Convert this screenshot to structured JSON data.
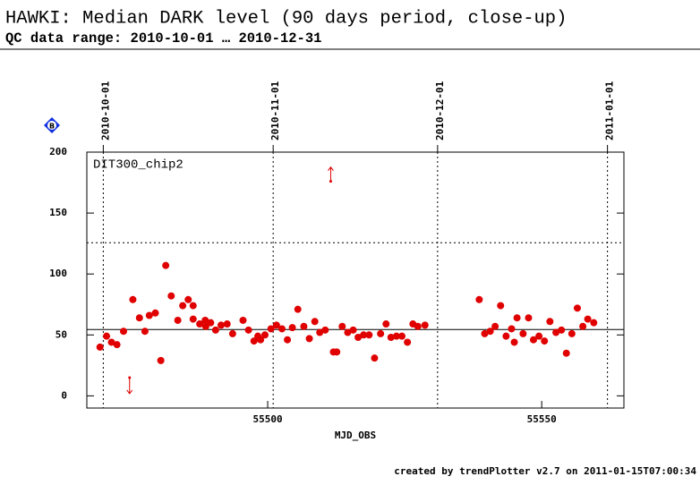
{
  "chart_data": {
    "type": "scatter",
    "title": "HAWKI: Median DARK level (90 days period, close-up)",
    "subtitle": "QC data range: 2010-10-01 … 2010-12-31",
    "badge": "B",
    "panel_label": "DIT300_chip2",
    "x_label": "MJD_OBS",
    "footer": "created by trendPlotter v2.7 on 2011-01-15T07:00:34",
    "color": "#e00000",
    "xlim": [
      55467,
      55565
    ],
    "ylim": [
      -10,
      200
    ],
    "xticks": [
      55500,
      55550
    ],
    "yticks": [
      0,
      50,
      100,
      150,
      200
    ],
    "top_ticks": [
      {
        "value": 55470,
        "label": "2010-10-01"
      },
      {
        "value": 55501,
        "label": "2010-11-01"
      },
      {
        "value": 55531,
        "label": "2010-12-01"
      },
      {
        "value": 55562,
        "label": "2011-01-01"
      }
    ],
    "reference_lines": [
      {
        "value": 54.4,
        "style": "solid"
      },
      {
        "value": 125.7,
        "style": "dotted"
      }
    ],
    "x": [
      55469.4,
      55470.6,
      55471.5,
      55472.5,
      55473.7,
      55475.4,
      55476.6,
      55477.6,
      55478.4,
      55479.5,
      55480.5,
      55481.4,
      55482.4,
      55483.6,
      55484.5,
      55485.5,
      55486.4,
      55486.4,
      55487.6,
      55488.6,
      55488.7,
      55489.6,
      55490.5,
      55491.5,
      55492.6,
      55493.6,
      55495.5,
      55496.5,
      55497.5,
      55498.2,
      55498.7,
      55499.5,
      55500.6,
      55501.6,
      55502.6,
      55503.6,
      55504.5,
      55505.5,
      55506.6,
      55507.6,
      55508.6,
      55509.5,
      55510.5,
      55512,
      55512.6,
      55513.6,
      55514.6,
      55515.6,
      55516.5,
      55517.5,
      55518.5,
      55519.5,
      55520.6,
      55521.6,
      55522.5,
      55523.5,
      55524.5,
      55525.5,
      55526.5,
      55527.4,
      55528.7,
      55538.6,
      55539.6,
      55540.6,
      55541.5,
      55542.5,
      55543.5,
      55544.5,
      55545,
      55545.5,
      55546.6,
      55547.6,
      55548.5,
      55549.5,
      55550.5,
      55551.5,
      55552.6,
      55553.6,
      55554.5,
      55555.5,
      55556.5,
      55557.5,
      55558.4,
      55559.5
    ],
    "values": [
      40,
      49,
      44,
      42,
      53,
      79,
      64,
      53,
      66,
      68,
      29,
      107,
      82,
      62,
      74,
      79,
      74,
      63,
      59,
      62,
      57,
      60,
      54,
      58,
      59,
      51,
      62,
      54,
      45,
      49,
      46,
      50,
      55,
      58,
      55,
      46,
      56,
      71,
      57,
      47,
      61,
      52,
      54,
      36,
      36,
      57,
      52,
      54,
      48,
      50,
      50,
      31,
      51,
      59,
      48,
      49,
      49,
      44,
      59,
      57,
      58,
      79,
      51,
      53,
      57,
      74,
      49,
      55,
      44,
      64,
      51,
      64,
      46,
      49,
      45,
      61,
      52,
      54,
      35,
      51,
      72,
      57,
      63,
      60
    ],
    "outliers": {
      "x": [
        55474.8,
        55511.5
      ],
      "values": [
        15,
        176
      ],
      "direction": [
        "down",
        "up"
      ]
    }
  }
}
